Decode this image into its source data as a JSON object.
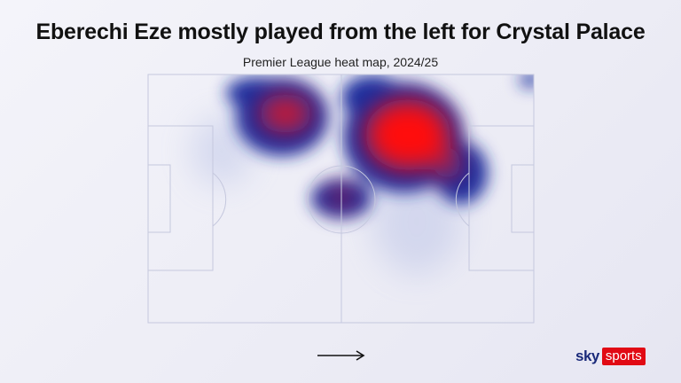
{
  "chart_data": {
    "type": "heatmap",
    "title": "Eberechi Eze mostly played from the left for Crystal Palace",
    "subtitle": "Premier League heat map, 2024/25",
    "attack_direction": "left-to-right",
    "legend": "none",
    "colors": {
      "low": "#1a2fa0",
      "high": "#ff0a0a",
      "pitch_lines": "#c5c8de"
    }
  },
  "branding": {
    "sky": "sky",
    "sports": "sports"
  }
}
